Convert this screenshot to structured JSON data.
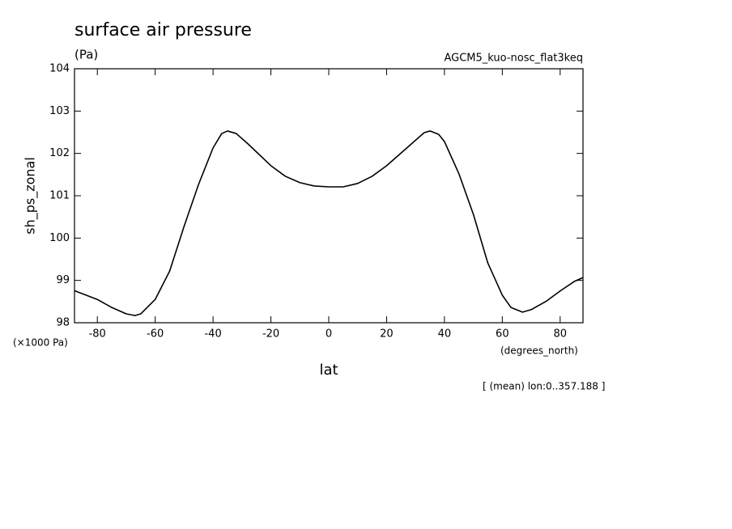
{
  "chart_data": {
    "type": "line",
    "title": "surface air pressure",
    "subtitle": "(Pa)",
    "annotation": "AGCM5_kuo-nosc_flat3keq",
    "y_label": "sh_ps_zonal",
    "y_unit": "(×1000 Pa)",
    "x_label": "lat",
    "x_unit": "(degrees_north)",
    "note": "[ (mean) lon:0..357.188 ]",
    "xlim": [
      -87.9,
      87.9
    ],
    "ylim": [
      98,
      104
    ],
    "xticks": [
      -80,
      -60,
      -40,
      -20,
      0,
      20,
      40,
      60,
      80
    ],
    "yticks": [
      98,
      99,
      100,
      101,
      102,
      103,
      104
    ],
    "x": [
      -88,
      -80,
      -75,
      -70,
      -67,
      -65,
      -60,
      -55,
      -50,
      -45,
      -40,
      -37,
      -35,
      -32,
      -28,
      -20,
      -15,
      -10,
      -5,
      0,
      5,
      10,
      15,
      20,
      28,
      33,
      35,
      38,
      40,
      45,
      50,
      55,
      60,
      63,
      67,
      70,
      75,
      80,
      85,
      88
    ],
    "series": [
      {
        "color": "#000000",
        "values": [
          98.76,
          98.55,
          98.36,
          98.21,
          98.17,
          98.21,
          98.55,
          99.22,
          100.28,
          101.27,
          102.13,
          102.47,
          102.53,
          102.47,
          102.23,
          101.71,
          101.46,
          101.31,
          101.23,
          101.21,
          101.21,
          101.29,
          101.46,
          101.71,
          102.19,
          102.49,
          102.53,
          102.45,
          102.28,
          101.52,
          100.56,
          99.41,
          98.65,
          98.36,
          98.25,
          98.31,
          98.5,
          98.75,
          98.98,
          99.07
        ]
      }
    ]
  }
}
